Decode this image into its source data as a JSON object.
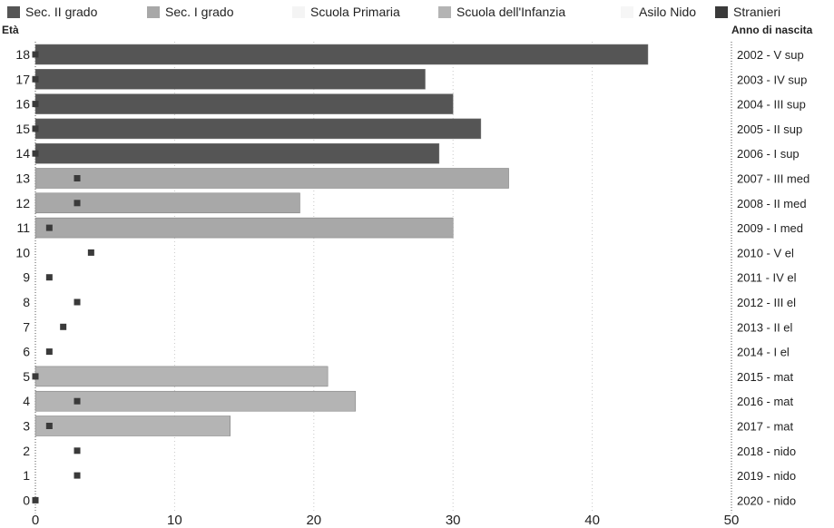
{
  "chart_data": {
    "type": "bar",
    "orientation": "horizontal",
    "left_axis_title": "Età",
    "right_axis_title": "Anno di nascita",
    "xlim": [
      0,
      50
    ],
    "x_ticks": [
      "0",
      "10",
      "20",
      "30",
      "40",
      "50"
    ],
    "categories": [
      "0",
      "1",
      "2",
      "3",
      "4",
      "5",
      "6",
      "7",
      "8",
      "9",
      "10",
      "11",
      "12",
      "13",
      "14",
      "15",
      "16",
      "17",
      "18"
    ],
    "birth_year_labels": [
      "2020 - nido",
      "2019 - nido",
      "2018 - nido",
      "2017 - mat",
      "2016 - mat",
      "2015 - mat",
      "2014 - I el",
      "2013 - II el",
      "2012 - III el",
      "2011 - IV el",
      "2010 - V el",
      "2009 - I med",
      "2008 - II med",
      "2007 - III med",
      "2006 - I sup",
      "2005 - II sup",
      "2004 - III sup",
      "2003 - IV sup",
      "2002 - V sup"
    ],
    "series": [
      {
        "name": "Sec. II grado",
        "color": "#555555",
        "values": [
          0,
          0,
          0,
          0,
          0,
          0,
          0,
          0,
          0,
          0,
          0,
          0,
          0,
          0,
          29,
          32,
          30,
          28,
          44
        ]
      },
      {
        "name": "Sec. I grado",
        "color": "#a8a8a8",
        "values": [
          0,
          0,
          0,
          0,
          0,
          0,
          0,
          0,
          0,
          0,
          0,
          30,
          19,
          34,
          0,
          0,
          0,
          0,
          0
        ]
      },
      {
        "name": "Scuola Primaria",
        "color": "#e2e2e2",
        "values": [
          0,
          0,
          0,
          0,
          0,
          0,
          0,
          0,
          0,
          0,
          0,
          0,
          0,
          0,
          0,
          0,
          0,
          0,
          0
        ]
      },
      {
        "name": "Scuola dell'Infanzia",
        "color": "#b4b4b4",
        "values": [
          0,
          0,
          0,
          14,
          23,
          21,
          0,
          0,
          0,
          0,
          0,
          0,
          0,
          0,
          0,
          0,
          0,
          0,
          0
        ]
      },
      {
        "name": "Asilo Nido",
        "color": "#ececec",
        "values": [
          0,
          0,
          0,
          0,
          0,
          0,
          0,
          0,
          0,
          0,
          0,
          0,
          0,
          0,
          0,
          0,
          0,
          0,
          0
        ]
      },
      {
        "name": "Stranieri",
        "color": "#3a3a3a",
        "marker": "square",
        "values": [
          0,
          3,
          3,
          1,
          3,
          0,
          1,
          2,
          3,
          1,
          4,
          1,
          3,
          3,
          0,
          0,
          0,
          0,
          0
        ]
      }
    ],
    "legend_position": "top",
    "grid": true
  }
}
